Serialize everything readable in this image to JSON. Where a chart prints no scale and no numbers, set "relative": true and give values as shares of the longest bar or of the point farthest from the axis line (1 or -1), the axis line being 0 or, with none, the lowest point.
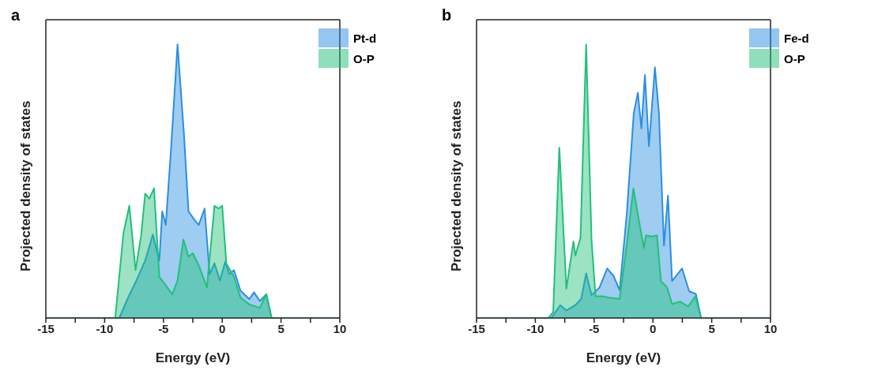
{
  "chart_data": [
    {
      "type": "area",
      "title": "a",
      "xlabel": "Energy (eV)",
      "ylabel": "Projected density of states",
      "relative": true,
      "legend": "top right",
      "xlim": [
        -15,
        10
      ],
      "xticks": [
        -15,
        {
          "value": -12.5,
          "label": null
        },
        -10,
        {
          "value": -7.5,
          "label": null
        },
        -5,
        {
          "value": -2.5,
          "label": null
        },
        0,
        {
          "value": 2.5,
          "label": null
        },
        5,
        {
          "value": 7.5,
          "label": null
        },
        10
      ],
      "series": [
        {
          "name": "Pt-d",
          "color": "#2b8fe0",
          "x": [
            -15,
            -8.75,
            -8.0,
            -7.3,
            -6.55,
            -5.9,
            -5.35,
            -5.1,
            -4.8,
            -4.35,
            -3.8,
            -3.25,
            -2.87,
            -2.3,
            -2.0,
            -1.5,
            -1.07,
            -0.66,
            -0.2,
            0.26,
            0.6,
            1.0,
            1.55,
            2.3,
            2.7,
            3.2,
            3.75,
            4.2,
            10
          ],
          "values": [
            0,
            0,
            0.075,
            0.137,
            0.21,
            0.305,
            0.21,
            0.39,
            0.34,
            0.62,
            1.0,
            0.67,
            0.39,
            0.355,
            0.34,
            0.4,
            0.16,
            0.2,
            0.137,
            0.206,
            0.16,
            0.175,
            0.1,
            0.069,
            0.094,
            0.062,
            0.087,
            0,
            0
          ]
        },
        {
          "name": "O-P",
          "color": "#22c07a",
          "x": [
            -15,
            -9.1,
            -8.4,
            -7.9,
            -7.37,
            -6.9,
            -6.55,
            -6.2,
            -5.8,
            -5.35,
            -4.9,
            -4.25,
            -3.8,
            -3.3,
            -2.87,
            -2.5,
            -2.0,
            -1.3,
            -0.66,
            -0.3,
            0,
            0.35,
            1.0,
            1.55,
            2.3,
            3.2,
            3.75,
            4.2,
            10
          ],
          "values": [
            0,
            0,
            0.31,
            0.41,
            0.175,
            0.3,
            0.455,
            0.436,
            0.474,
            0.15,
            0.125,
            0.087,
            0.137,
            0.287,
            0.224,
            0.237,
            0.193,
            0.112,
            0.41,
            0.4,
            0.41,
            0.2,
            0.15,
            0.075,
            0.05,
            0.037,
            0.087,
            0,
            0
          ]
        }
      ]
    },
    {
      "type": "area",
      "title": "b",
      "xlabel": "Energy (eV)",
      "ylabel": "Projected density of states",
      "relative": true,
      "legend": "top right",
      "xlim": [
        -15,
        10
      ],
      "xticks": [
        -15,
        {
          "value": -12.5,
          "label": null
        },
        -10,
        {
          "value": -7.5,
          "label": null
        },
        -5,
        {
          "value": -2.5,
          "label": null
        },
        0,
        {
          "value": 2.5,
          "label": null
        },
        5,
        {
          "value": 7.5,
          "label": null
        },
        10
      ],
      "series": [
        {
          "name": "Fe-d",
          "color": "#2b8fe0",
          "x": [
            -15,
            -8.65,
            -7.88,
            -7.36,
            -6.6,
            -6.1,
            -5.68,
            -5.22,
            -4.54,
            -3.89,
            -3.34,
            -2.83,
            -2.23,
            -1.63,
            -1.28,
            -0.98,
            -0.68,
            -0.34,
            0.17,
            0.51,
            0.94,
            1.28,
            1.63,
            2.48,
            3.08,
            3.65,
            4.1,
            10
          ],
          "values": [
            0,
            0,
            0.047,
            0.028,
            0.047,
            0.07,
            0.163,
            0.084,
            0.112,
            0.181,
            0.153,
            0.102,
            0.377,
            0.749,
            0.823,
            0.693,
            0.888,
            0.628,
            0.916,
            0.749,
            0.265,
            0.447,
            0.135,
            0.181,
            0.098,
            0.088,
            0,
            0
          ]
        },
        {
          "name": "O-P",
          "color": "#22c07a",
          "x": [
            -15,
            -8.9,
            -8.48,
            -7.96,
            -7.36,
            -6.76,
            -6.6,
            -6.16,
            -5.68,
            -5.22,
            -4.88,
            -4.2,
            -3.68,
            -2.83,
            -2.23,
            -1.66,
            -1.2,
            -0.77,
            -0.6,
            -0.09,
            0.34,
            0.68,
            1.2,
            1.63,
            2.3,
            3.0,
            3.6,
            4.1,
            10
          ],
          "values": [
            0,
            0,
            0.023,
            0.623,
            0.107,
            0.28,
            0.228,
            0.293,
            1.0,
            0.284,
            0.079,
            0.079,
            0.074,
            0.07,
            0.265,
            0.474,
            0.358,
            0.256,
            0.302,
            0.298,
            0.302,
            0.135,
            0.112,
            0.051,
            0.06,
            0.042,
            0.079,
            0,
            0
          ]
        }
      ]
    }
  ]
}
